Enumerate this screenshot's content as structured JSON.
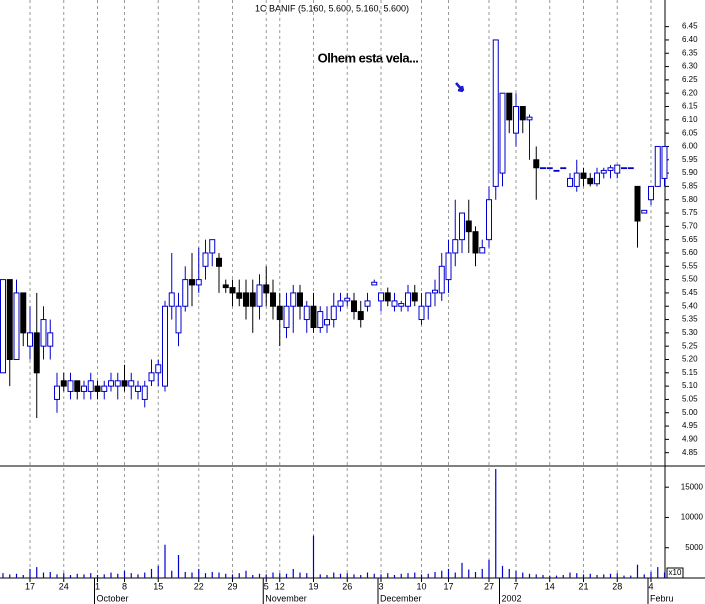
{
  "chart_data": {
    "type": "candlestick",
    "title": "1C BANIF (5.160, 5.600, 5.160, 5.600)",
    "annotation": "Olhem esta vela...",
    "volume_unit_label": "x10",
    "up_color": "#0000cc",
    "down_color": "#000000",
    "annotation_color": "#1a1acc",
    "grid": true,
    "categories": [
      null,
      null,
      null,
      null,
      "17",
      null,
      null,
      null,
      null,
      "24",
      null,
      null,
      null,
      null,
      "1",
      null,
      null,
      null,
      "8",
      null,
      null,
      null,
      null,
      "15",
      null,
      null,
      null,
      null,
      null,
      "22",
      null,
      null,
      null,
      null,
      "29",
      null,
      null,
      null,
      null,
      "5",
      null,
      "12",
      null,
      null,
      null,
      null,
      "19",
      null,
      null,
      null,
      null,
      "26",
      null,
      null,
      null,
      null,
      "3",
      null,
      null,
      null,
      null,
      null,
      "10",
      null,
      null,
      null,
      "17",
      null,
      null,
      null,
      null,
      null,
      "27",
      null,
      null,
      null,
      "7",
      null,
      null,
      null,
      null,
      "14",
      null,
      null,
      null,
      null,
      "21",
      null,
      null,
      null,
      null,
      "28",
      null,
      null,
      null,
      null,
      "4",
      null,
      null
    ],
    "category_groups": [
      {
        "label": "October",
        "start": 14
      },
      {
        "label": "November",
        "start": 39
      },
      {
        "label": "December",
        "start": 56
      },
      {
        "label": "2002",
        "start": 74
      },
      {
        "label": "Febru",
        "start": 96
      }
    ],
    "open": [
      5.15,
      5.5,
      5.2,
      5.45,
      5.25,
      5.3,
      5.25,
      5.25,
      5.05,
      5.12,
      5.08,
      5.12,
      5.08,
      5.08,
      5.1,
      5.08,
      5.1,
      5.1,
      5.12,
      5.1,
      5.08,
      5.05,
      5.12,
      5.15,
      5.1,
      5.4,
      5.3,
      5.4,
      5.5,
      5.48,
      5.55,
      5.6,
      5.58,
      5.48,
      5.47,
      5.45,
      5.45,
      5.45,
      5.4,
      5.48,
      5.45,
      5.4,
      5.32,
      5.4,
      5.45,
      5.35,
      5.4,
      5.32,
      5.33,
      5.35,
      5.4,
      5.42,
      5.42,
      5.38,
      5.4,
      5.48,
      5.42,
      5.45,
      5.4,
      5.4,
      5.4,
      5.45,
      5.35,
      5.4,
      5.45,
      5.45,
      5.5,
      5.6,
      5.65,
      5.72,
      5.68,
      5.6,
      5.65,
      5.85,
      5.9,
      6.2,
      6.05,
      6.15,
      6.1,
      5.95,
      5.92,
      5.92,
      5.91,
      5.92,
      5.85,
      5.85,
      5.9,
      5.88,
      5.86,
      5.9,
      5.91,
      5.9,
      5.92,
      5.92,
      5.85,
      5.75,
      5.8,
      5.85,
      5.88
    ],
    "high": [
      5.5,
      5.5,
      5.5,
      5.45,
      5.4,
      5.45,
      5.4,
      5.35,
      5.15,
      5.15,
      5.15,
      5.12,
      5.12,
      5.15,
      5.12,
      5.12,
      5.15,
      5.15,
      5.18,
      5.15,
      5.12,
      5.12,
      5.2,
      5.2,
      5.42,
      5.6,
      5.45,
      5.55,
      5.6,
      5.62,
      5.65,
      5.65,
      5.6,
      5.5,
      5.5,
      5.5,
      5.5,
      5.5,
      5.52,
      5.55,
      5.5,
      5.45,
      5.45,
      5.48,
      5.48,
      5.42,
      5.45,
      5.4,
      5.4,
      5.45,
      5.45,
      5.45,
      5.45,
      5.42,
      5.45,
      5.5,
      5.45,
      5.47,
      5.45,
      5.42,
      5.48,
      5.48,
      5.45,
      5.45,
      5.5,
      5.6,
      5.65,
      5.8,
      5.75,
      5.8,
      5.7,
      5.65,
      5.85,
      6.4,
      6.2,
      6.2,
      6.2,
      6.15,
      6.12,
      6.0,
      5.92,
      5.92,
      5.91,
      5.92,
      5.9,
      5.95,
      5.92,
      5.9,
      5.92,
      5.92,
      5.93,
      5.93,
      5.92,
      5.92,
      5.85,
      5.75,
      5.85,
      6.0,
      6.0
    ],
    "low": [
      5.15,
      5.1,
      5.2,
      5.25,
      5.2,
      4.98,
      5.2,
      5.2,
      5.0,
      5.08,
      5.05,
      5.05,
      5.05,
      5.05,
      5.05,
      5.05,
      5.08,
      5.05,
      5.08,
      5.05,
      5.05,
      5.02,
      5.1,
      5.1,
      5.08,
      5.35,
      5.25,
      5.38,
      5.4,
      5.45,
      5.5,
      5.55,
      5.45,
      5.45,
      5.4,
      5.4,
      5.35,
      5.3,
      5.35,
      5.4,
      5.35,
      5.25,
      5.28,
      5.3,
      5.35,
      5.3,
      5.3,
      5.3,
      5.3,
      5.32,
      5.38,
      5.4,
      5.35,
      5.32,
      5.38,
      5.48,
      5.38,
      5.4,
      5.38,
      5.38,
      5.38,
      5.4,
      5.33,
      5.35,
      5.4,
      5.42,
      5.45,
      5.55,
      5.6,
      5.6,
      5.55,
      5.6,
      5.62,
      5.8,
      5.85,
      6.05,
      6.0,
      6.05,
      5.95,
      5.8,
      5.92,
      5.92,
      5.91,
      5.92,
      5.85,
      5.83,
      5.85,
      5.85,
      5.85,
      5.88,
      5.88,
      5.88,
      5.92,
      5.92,
      5.62,
      5.75,
      5.78,
      5.85,
      5.85
    ],
    "close": [
      5.5,
      5.2,
      5.45,
      5.3,
      5.3,
      5.15,
      5.35,
      5.3,
      5.1,
      5.1,
      5.12,
      5.08,
      5.1,
      5.12,
      5.08,
      5.1,
      5.12,
      5.12,
      5.1,
      5.12,
      5.1,
      5.1,
      5.15,
      5.18,
      5.4,
      5.45,
      5.4,
      5.5,
      5.48,
      5.5,
      5.6,
      5.65,
      5.55,
      5.47,
      5.45,
      5.43,
      5.4,
      5.4,
      5.48,
      5.45,
      5.4,
      5.35,
      5.4,
      5.45,
      5.4,
      5.4,
      5.32,
      5.38,
      5.35,
      5.4,
      5.42,
      5.43,
      5.38,
      5.35,
      5.42,
      5.49,
      5.45,
      5.42,
      5.42,
      5.41,
      5.45,
      5.42,
      5.4,
      5.45,
      5.46,
      5.55,
      5.6,
      5.65,
      5.75,
      5.68,
      5.6,
      5.62,
      5.8,
      6.4,
      6.2,
      6.1,
      6.15,
      6.1,
      6.11,
      5.92,
      5.92,
      5.92,
      5.91,
      5.92,
      5.88,
      5.9,
      5.88,
      5.86,
      5.9,
      5.91,
      5.92,
      5.93,
      5.92,
      5.92,
      5.72,
      5.76,
      5.85,
      6.0,
      6.0
    ],
    "volume": [
      800,
      600,
      700,
      500,
      1500,
      1800,
      900,
      1000,
      600,
      800,
      500,
      700,
      600,
      800,
      500,
      600,
      900,
      700,
      1200,
      800,
      600,
      900,
      1500,
      2000,
      5500,
      1200,
      3800,
      1000,
      900,
      1500,
      800,
      1000,
      900,
      700,
      600,
      800,
      1200,
      500,
      700,
      600,
      900,
      800,
      700,
      1500,
      900,
      800,
      7000,
      600,
      500,
      900,
      700,
      800,
      600,
      500,
      900,
      700,
      600,
      800,
      500,
      700,
      800,
      900,
      600,
      700,
      1000,
      1200,
      1500,
      900,
      2500,
      1400,
      1000,
      1500,
      3000,
      18000,
      2000,
      1500,
      1200,
      900,
      700,
      600,
      500,
      400,
      400,
      500,
      900,
      800,
      600,
      700,
      500,
      600,
      700,
      800,
      400,
      400,
      2200,
      600,
      1000,
      1800,
      900
    ],
    "ylim": [
      4.8,
      6.55
    ],
    "yticks": [
      {
        "value": 4.85,
        "label": "4.85"
      },
      {
        "value": 4.9,
        "label": "4.90"
      },
      {
        "value": 4.95,
        "label": "4.95"
      },
      {
        "value": 5,
        "label": "5.00"
      },
      {
        "value": 5.05,
        "label": "5.05"
      },
      {
        "value": 5.1,
        "label": "5.10"
      },
      {
        "value": 5.15,
        "label": "5.15"
      },
      {
        "value": 5.2,
        "label": "5.20"
      },
      {
        "value": 5.25,
        "label": "5.25"
      },
      {
        "value": 5.3,
        "label": "5.30"
      },
      {
        "value": 5.35,
        "label": "5.35"
      },
      {
        "value": 5.4,
        "label": "5.40"
      },
      {
        "value": 5.45,
        "label": "5.45"
      },
      {
        "value": 5.5,
        "label": "5.50"
      },
      {
        "value": 5.55,
        "label": "5.55"
      },
      {
        "value": 5.6,
        "label": "5.60"
      },
      {
        "value": 5.65,
        "label": "5.65"
      },
      {
        "value": 5.7,
        "label": "5.70"
      },
      {
        "value": 5.75,
        "label": "5.75"
      },
      {
        "value": 5.8,
        "label": "5.80"
      },
      {
        "value": 5.85,
        "label": "5.85"
      },
      {
        "value": 5.9,
        "label": "5.90"
      },
      {
        "value": 5.95,
        "label": "5.95"
      },
      {
        "value": 6,
        "label": "6.00"
      },
      {
        "value": 6.05,
        "label": "6.05"
      },
      {
        "value": 6.1,
        "label": "6.10"
      },
      {
        "value": 6.15,
        "label": "6.15"
      },
      {
        "value": 6.2,
        "label": "6.20"
      },
      {
        "value": 6.25,
        "label": "6.25"
      },
      {
        "value": 6.3,
        "label": "6.30"
      },
      {
        "value": 6.35,
        "label": "6.35"
      },
      {
        "value": 6.4,
        "label": "6.40"
      },
      {
        "value": 6.45,
        "label": "6.45"
      }
    ],
    "volume_ylim": [
      0,
      18500
    ],
    "volume_yticks": [
      5000,
      10000,
      15000
    ]
  }
}
